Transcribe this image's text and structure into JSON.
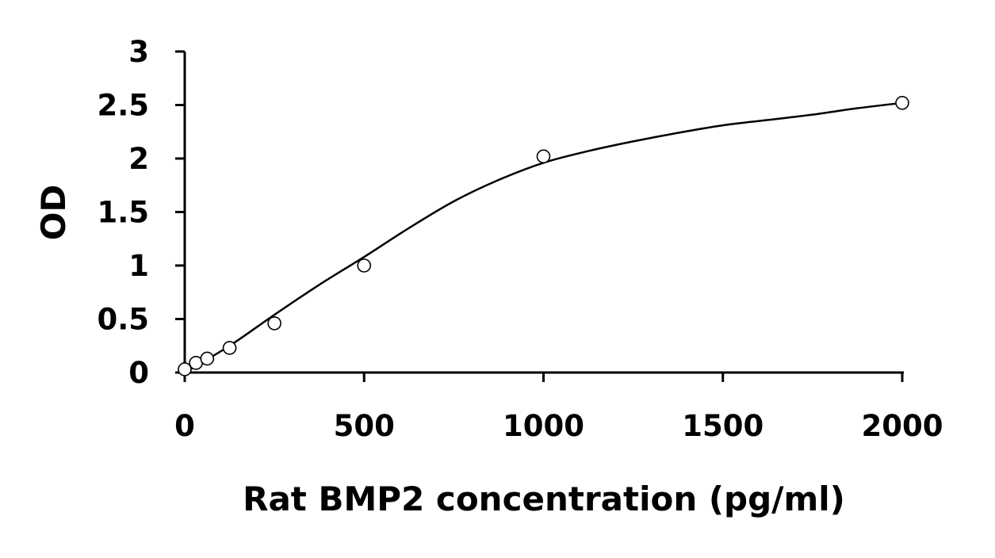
{
  "chart_data": {
    "type": "scatter",
    "title": "",
    "xlabel": "Rat BMP2 concentration (pg/ml)",
    "ylabel": "OD",
    "xlim": [
      0,
      2000
    ],
    "ylim": [
      0,
      3
    ],
    "x_ticks": [
      "0",
      "500",
      "1000",
      "1500",
      "2000"
    ],
    "y_ticks": [
      "0",
      "0.5",
      "1",
      "1.5",
      "2",
      "2.5",
      "3"
    ],
    "grid": false,
    "legend": "none",
    "series": [
      {
        "type": "scatter",
        "x": [
          0,
          31.25,
          62.5,
          125,
          250,
          500,
          1000,
          2000
        ],
        "y": [
          0.03,
          0.09,
          0.13,
          0.23,
          0.46,
          1.0,
          2.02,
          2.52
        ],
        "marker": "open-circle"
      },
      {
        "type": "line",
        "smooth": true,
        "x": [
          0,
          125,
          250,
          375,
          500,
          625,
          750,
          875,
          1000,
          1125,
          1250,
          1375,
          1500,
          1625,
          1750,
          1875,
          2000
        ],
        "y": [
          0.0,
          0.25,
          0.54,
          0.82,
          1.08,
          1.35,
          1.6,
          1.8,
          1.96,
          2.07,
          2.16,
          2.24,
          2.31,
          2.36,
          2.41,
          2.47,
          2.52
        ]
      }
    ]
  }
}
